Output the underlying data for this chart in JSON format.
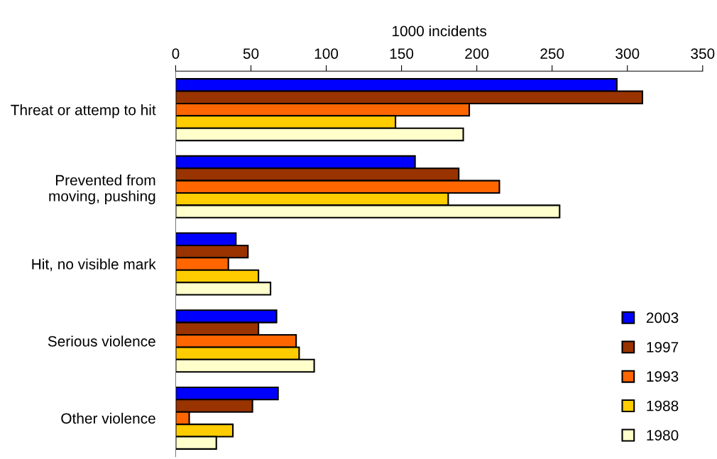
{
  "chart_data": {
    "type": "bar",
    "orientation": "horizontal",
    "xlabel": "1000 incidents",
    "categories": [
      "Threat or attemp to hit",
      "Prevented from moving, pushing",
      "Hit, no visible mark",
      "Serious violence",
      "Other violence"
    ],
    "series": [
      {
        "name": "2003",
        "color": "#0000ff",
        "values": [
          293,
          159,
          40,
          67,
          68
        ]
      },
      {
        "name": "1997",
        "color": "#993300",
        "values": [
          310,
          188,
          48,
          55,
          51
        ]
      },
      {
        "name": "1993",
        "color": "#ff6600",
        "values": [
          195,
          215,
          35,
          80,
          9
        ]
      },
      {
        "name": "1988",
        "color": "#ffcc00",
        "values": [
          146,
          181,
          55,
          82,
          38
        ]
      },
      {
        "name": "1980",
        "color": "#ffffcc",
        "values": [
          191,
          255,
          63,
          92,
          27
        ]
      }
    ],
    "xlim": [
      0,
      350
    ],
    "xticks": [
      0,
      50,
      100,
      150,
      200,
      250,
      300,
      350
    ],
    "grid": false,
    "legend": "bottom right"
  }
}
